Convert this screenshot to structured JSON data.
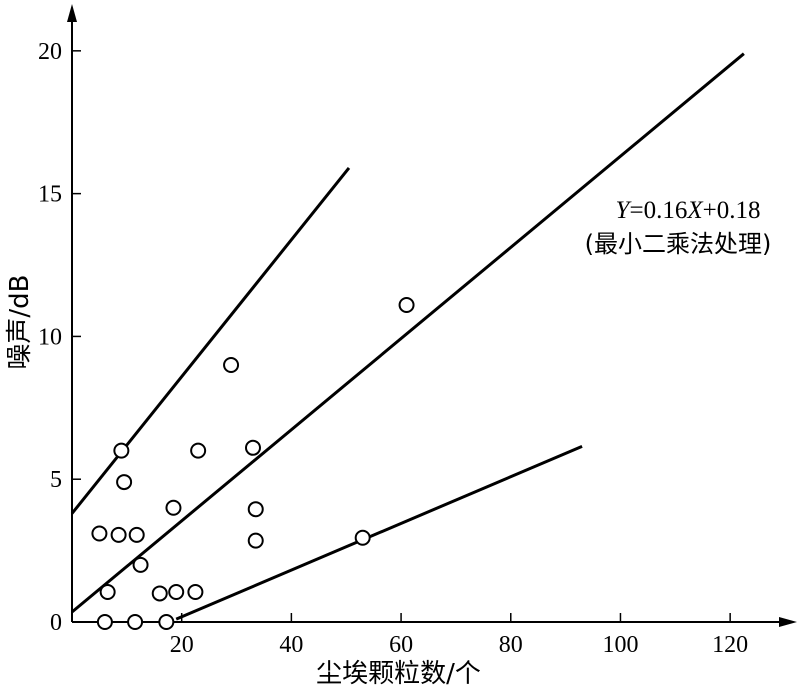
{
  "chart_data": {
    "type": "scatter",
    "xlabel": "尘埃颗粒数/个",
    "ylabel": "噪声/dB",
    "xlim": [
      0,
      130
    ],
    "ylim": [
      0,
      21.5
    ],
    "x_ticks": [
      20,
      40,
      60,
      80,
      100,
      120
    ],
    "y_ticks": [
      0,
      5,
      10,
      15,
      20
    ],
    "grid": false,
    "points": [
      {
        "x": 5,
        "y": 3.1
      },
      {
        "x": 6,
        "y": 0
      },
      {
        "x": 6.5,
        "y": 1.05
      },
      {
        "x": 8.5,
        "y": 3.05
      },
      {
        "x": 9,
        "y": 6
      },
      {
        "x": 9.5,
        "y": 4.9
      },
      {
        "x": 11.5,
        "y": 0
      },
      {
        "x": 11.8,
        "y": 3.05
      },
      {
        "x": 12.5,
        "y": 2
      },
      {
        "x": 16,
        "y": 1
      },
      {
        "x": 17.2,
        "y": 0
      },
      {
        "x": 18.5,
        "y": 4
      },
      {
        "x": 19,
        "y": 1.05
      },
      {
        "x": 22.5,
        "y": 1.05
      },
      {
        "x": 23,
        "y": 6
      },
      {
        "x": 29,
        "y": 9
      },
      {
        "x": 33,
        "y": 6.1
      },
      {
        "x": 33.5,
        "y": 3.95
      },
      {
        "x": 33.5,
        "y": 2.85
      },
      {
        "x": 53,
        "y": 2.95
      },
      {
        "x": 61,
        "y": 11.1
      }
    ],
    "lines": [
      {
        "role": "upper-bound",
        "x": [
          0,
          50.5
        ],
        "y": [
          3.8,
          15.9
        ]
      },
      {
        "role": "fit",
        "x": [
          0,
          122.5
        ],
        "y": [
          0.35,
          19.9
        ]
      },
      {
        "role": "lower-bound",
        "x": [
          19,
          93
        ],
        "y": [
          0.1,
          6.15
        ]
      }
    ],
    "annotations": [
      {
        "text_eq": "Y=0.16X+0.18",
        "text_cn": "(最小二乘法处理)"
      }
    ]
  }
}
